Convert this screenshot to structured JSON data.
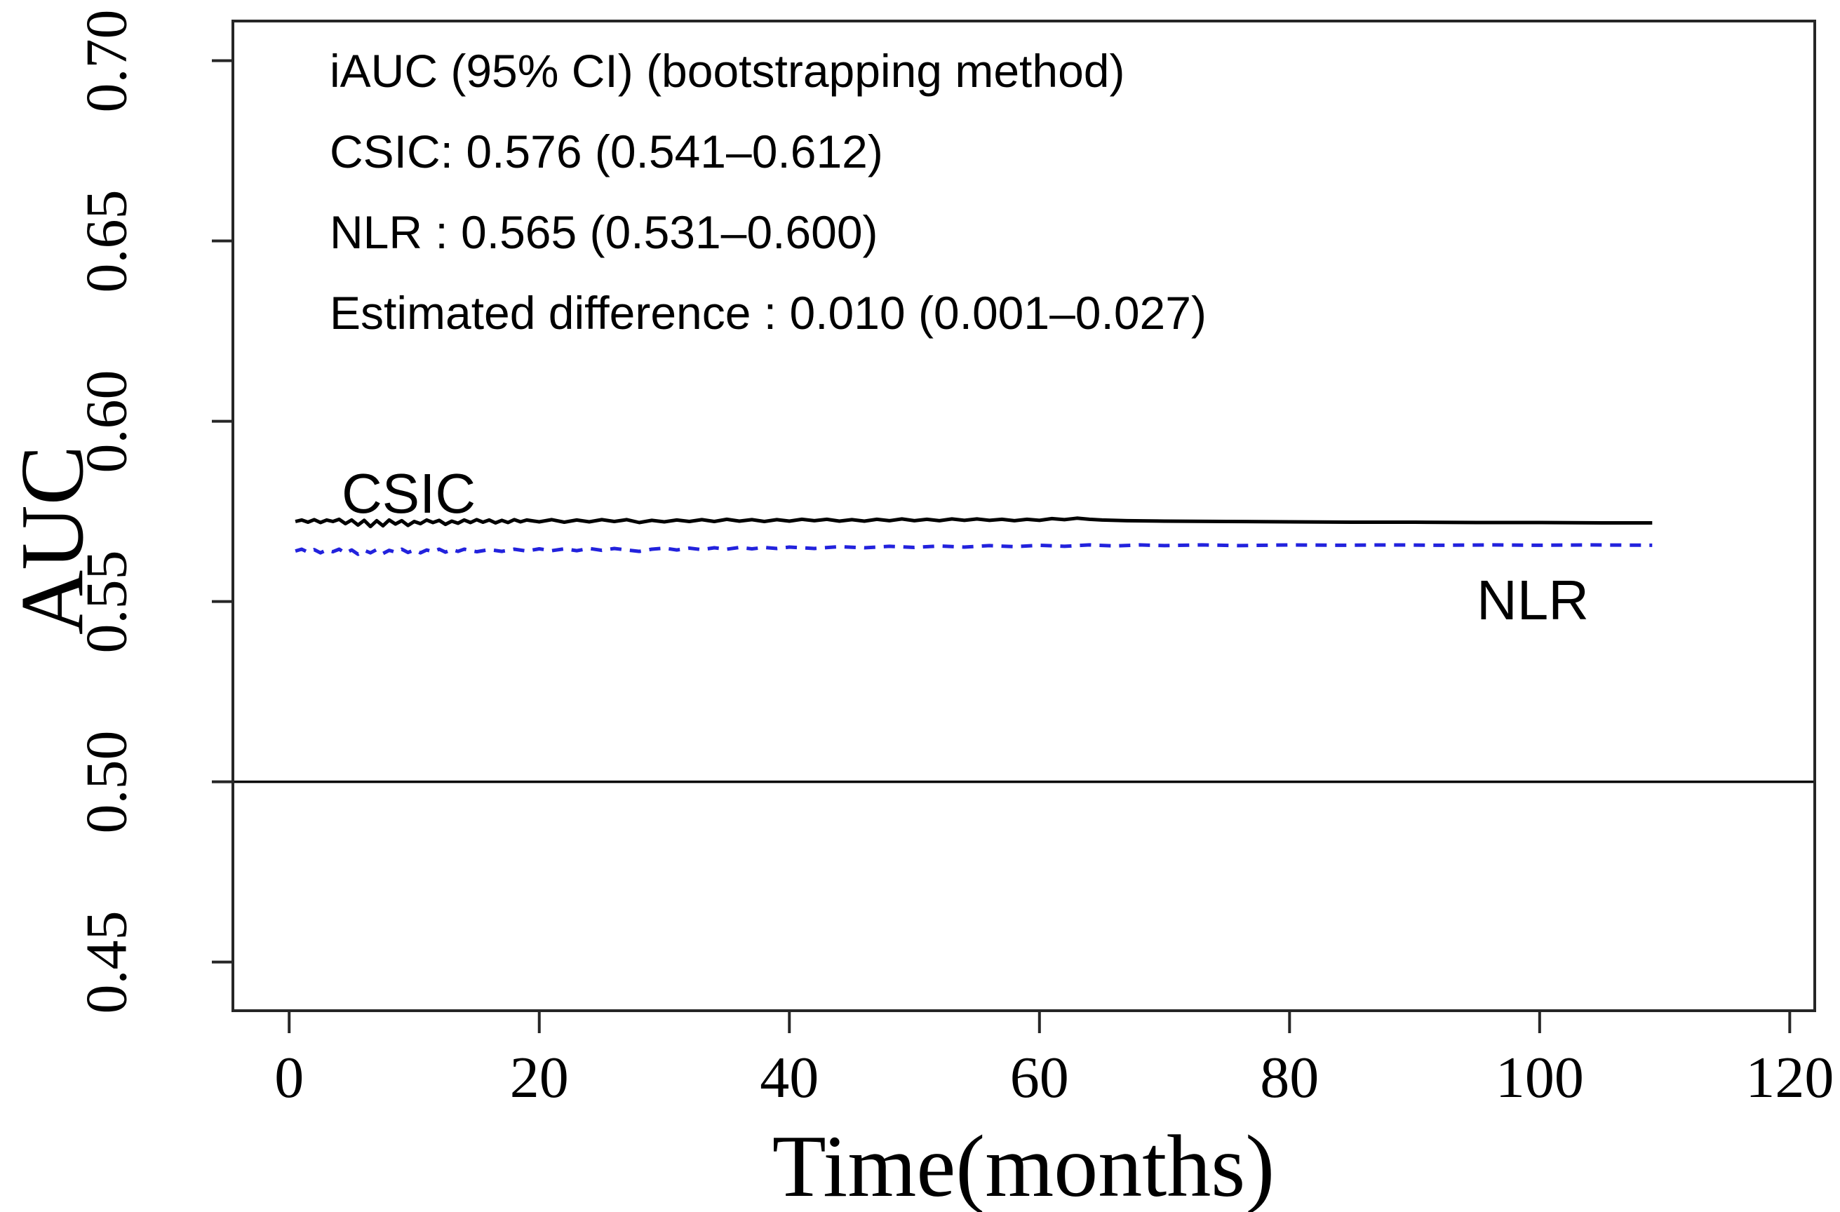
{
  "figure": {
    "background": "#ffffff"
  },
  "colors": {
    "frame": "#262626",
    "tick": "#262626",
    "text": "#000000",
    "csic_line": "#000000",
    "nlr_line": "#2222dd",
    "reference_line": "#000000"
  },
  "chart_data": {
    "type": "line",
    "title": "",
    "xlabel": "Time(months)",
    "ylabel": "AUC",
    "xlim": [
      -4.5,
      122
    ],
    "ylim": [
      0.4365,
      0.711
    ],
    "grid": false,
    "x_ticks": [
      {
        "value": 0,
        "label": "0"
      },
      {
        "value": 20,
        "label": "20"
      },
      {
        "value": 40,
        "label": "40"
      },
      {
        "value": 60,
        "label": "60"
      },
      {
        "value": 80,
        "label": "80"
      },
      {
        "value": 100,
        "label": "100"
      },
      {
        "value": 120,
        "label": "120"
      }
    ],
    "y_ticks": [
      {
        "value": 0.45,
        "label": "0.45"
      },
      {
        "value": 0.5,
        "label": "0.50"
      },
      {
        "value": 0.55,
        "label": "0.55"
      },
      {
        "value": 0.6,
        "label": "0.60"
      },
      {
        "value": 0.65,
        "label": "0.65"
      },
      {
        "value": 0.7,
        "label": "0.70"
      }
    ],
    "reference_line": {
      "y": 0.5
    },
    "annotation": {
      "lines": [
        "iAUC (95% CI) (bootstrapping method)",
        "CSIC: 0.576 (0.541–0.612)",
        "NLR : 0.565 (0.531–0.600)",
        "Estimated difference : 0.010 (0.001–0.027)"
      ]
    },
    "iauc_stats": {
      "method": "bootstrapping",
      "ci_level": "95% CI",
      "CSIC": {
        "iauc": "0.576",
        "ci": "0.541–0.612"
      },
      "NLR": {
        "iauc": "0.565",
        "ci": "0.531–0.600"
      },
      "estimated_difference": {
        "value": "0.010",
        "ci": "0.001–0.027"
      }
    },
    "series": [
      {
        "name": "CSIC",
        "line_style": "solid",
        "points": [
          [
            0.5,
            0.5722
          ],
          [
            1,
            0.5726
          ],
          [
            1.5,
            0.572
          ],
          [
            2,
            0.5727
          ],
          [
            2.5,
            0.5719
          ],
          [
            3,
            0.5726
          ],
          [
            3.5,
            0.5722
          ],
          [
            4,
            0.5728
          ],
          [
            4.5,
            0.5716
          ],
          [
            5,
            0.5726
          ],
          [
            5.5,
            0.5712
          ],
          [
            6,
            0.5725
          ],
          [
            6.5,
            0.5708
          ],
          [
            7,
            0.5724
          ],
          [
            7.5,
            0.571
          ],
          [
            8,
            0.5726
          ],
          [
            8.5,
            0.5715
          ],
          [
            9,
            0.5724
          ],
          [
            9.5,
            0.5711
          ],
          [
            10,
            0.5722
          ],
          [
            10.5,
            0.5716
          ],
          [
            11,
            0.5726
          ],
          [
            11.5,
            0.5719
          ],
          [
            12,
            0.5725
          ],
          [
            12.5,
            0.5714
          ],
          [
            13,
            0.5723
          ],
          [
            13.5,
            0.5717
          ],
          [
            14,
            0.5726
          ],
          [
            14.5,
            0.5719
          ],
          [
            15,
            0.5727
          ],
          [
            15.5,
            0.572
          ],
          [
            16,
            0.5726
          ],
          [
            16.5,
            0.5718
          ],
          [
            17,
            0.5725
          ],
          [
            17.5,
            0.5719
          ],
          [
            18,
            0.5727
          ],
          [
            18.5,
            0.5721
          ],
          [
            19,
            0.5726
          ],
          [
            20,
            0.5721
          ],
          [
            21,
            0.5727
          ],
          [
            22,
            0.572
          ],
          [
            23,
            0.5726
          ],
          [
            24,
            0.5721
          ],
          [
            25,
            0.5727
          ],
          [
            26,
            0.5722
          ],
          [
            27,
            0.5727
          ],
          [
            28,
            0.5719
          ],
          [
            29,
            0.5725
          ],
          [
            30,
            0.5721
          ],
          [
            31,
            0.5726
          ],
          [
            32,
            0.5722
          ],
          [
            33,
            0.5727
          ],
          [
            34,
            0.5722
          ],
          [
            35,
            0.5728
          ],
          [
            36,
            0.5723
          ],
          [
            37,
            0.5727
          ],
          [
            38,
            0.5722
          ],
          [
            39,
            0.5727
          ],
          [
            40,
            0.5723
          ],
          [
            41,
            0.5728
          ],
          [
            42,
            0.5724
          ],
          [
            43,
            0.5728
          ],
          [
            44,
            0.5723
          ],
          [
            45,
            0.5727
          ],
          [
            46,
            0.5723
          ],
          [
            47,
            0.5728
          ],
          [
            48,
            0.5724
          ],
          [
            49,
            0.5729
          ],
          [
            50,
            0.5724
          ],
          [
            51,
            0.5728
          ],
          [
            52,
            0.5724
          ],
          [
            53,
            0.5729
          ],
          [
            54,
            0.5725
          ],
          [
            55,
            0.5729
          ],
          [
            56,
            0.5725
          ],
          [
            57,
            0.5728
          ],
          [
            58,
            0.5724
          ],
          [
            59,
            0.5728
          ],
          [
            60,
            0.5725
          ],
          [
            61,
            0.573
          ],
          [
            62,
            0.5727
          ],
          [
            63,
            0.5731
          ],
          [
            64,
            0.5728
          ],
          [
            65,
            0.5726
          ],
          [
            67,
            0.5724
          ],
          [
            70,
            0.5723
          ],
          [
            75,
            0.5722
          ],
          [
            80,
            0.5721
          ],
          [
            85,
            0.572
          ],
          [
            90,
            0.572
          ],
          [
            95,
            0.5719
          ],
          [
            100,
            0.5719
          ],
          [
            105,
            0.5718
          ],
          [
            109,
            0.5718
          ]
        ]
      },
      {
        "name": "NLR",
        "line_style": "dashed",
        "points": [
          [
            0.5,
            0.564
          ],
          [
            1,
            0.5645
          ],
          [
            1.5,
            0.5637
          ],
          [
            2,
            0.5644
          ],
          [
            2.5,
            0.5635
          ],
          [
            3,
            0.5643
          ],
          [
            3.5,
            0.5638
          ],
          [
            4,
            0.5645
          ],
          [
            4.5,
            0.5634
          ],
          [
            5,
            0.5643
          ],
          [
            5.5,
            0.5631
          ],
          [
            6,
            0.5642
          ],
          [
            6.5,
            0.5635
          ],
          [
            7,
            0.5644
          ],
          [
            7.5,
            0.5633
          ],
          [
            8,
            0.5642
          ],
          [
            8.5,
            0.5637
          ],
          [
            9,
            0.5645
          ],
          [
            9.5,
            0.5636
          ],
          [
            10,
            0.5643
          ],
          [
            10.5,
            0.5635
          ],
          [
            11,
            0.5643
          ],
          [
            11.5,
            0.5638
          ],
          [
            12,
            0.5645
          ],
          [
            12.5,
            0.5637
          ],
          [
            13,
            0.5644
          ],
          [
            13.5,
            0.5639
          ],
          [
            14,
            0.5645
          ],
          [
            15,
            0.5638
          ],
          [
            16,
            0.5644
          ],
          [
            17,
            0.5639
          ],
          [
            18,
            0.5645
          ],
          [
            19,
            0.564
          ],
          [
            20,
            0.5646
          ],
          [
            21,
            0.5641
          ],
          [
            22,
            0.5646
          ],
          [
            23,
            0.5641
          ],
          [
            24,
            0.5647
          ],
          [
            25,
            0.5642
          ],
          [
            26,
            0.5647
          ],
          [
            27,
            0.5643
          ],
          [
            28,
            0.5639
          ],
          [
            29,
            0.5645
          ],
          [
            30,
            0.5648
          ],
          [
            31,
            0.5643
          ],
          [
            32,
            0.5648
          ],
          [
            33,
            0.5644
          ],
          [
            34,
            0.5649
          ],
          [
            35,
            0.5645
          ],
          [
            36,
            0.565
          ],
          [
            37,
            0.5646
          ],
          [
            38,
            0.565
          ],
          [
            39,
            0.5647
          ],
          [
            40,
            0.5651
          ],
          [
            42,
            0.5647
          ],
          [
            44,
            0.5652
          ],
          [
            46,
            0.5649
          ],
          [
            48,
            0.5653
          ],
          [
            50,
            0.565
          ],
          [
            52,
            0.5654
          ],
          [
            54,
            0.5651
          ],
          [
            56,
            0.5655
          ],
          [
            58,
            0.5652
          ],
          [
            60,
            0.5656
          ],
          [
            62,
            0.5653
          ],
          [
            64,
            0.5657
          ],
          [
            66,
            0.5654
          ],
          [
            68,
            0.5657
          ],
          [
            70,
            0.5655
          ],
          [
            73,
            0.5657
          ],
          [
            76,
            0.5655
          ],
          [
            80,
            0.5657
          ],
          [
            84,
            0.5656
          ],
          [
            88,
            0.5657
          ],
          [
            92,
            0.5656
          ],
          [
            96,
            0.5657
          ],
          [
            100,
            0.5656
          ],
          [
            104,
            0.5657
          ],
          [
            109,
            0.5656
          ]
        ]
      }
    ]
  }
}
